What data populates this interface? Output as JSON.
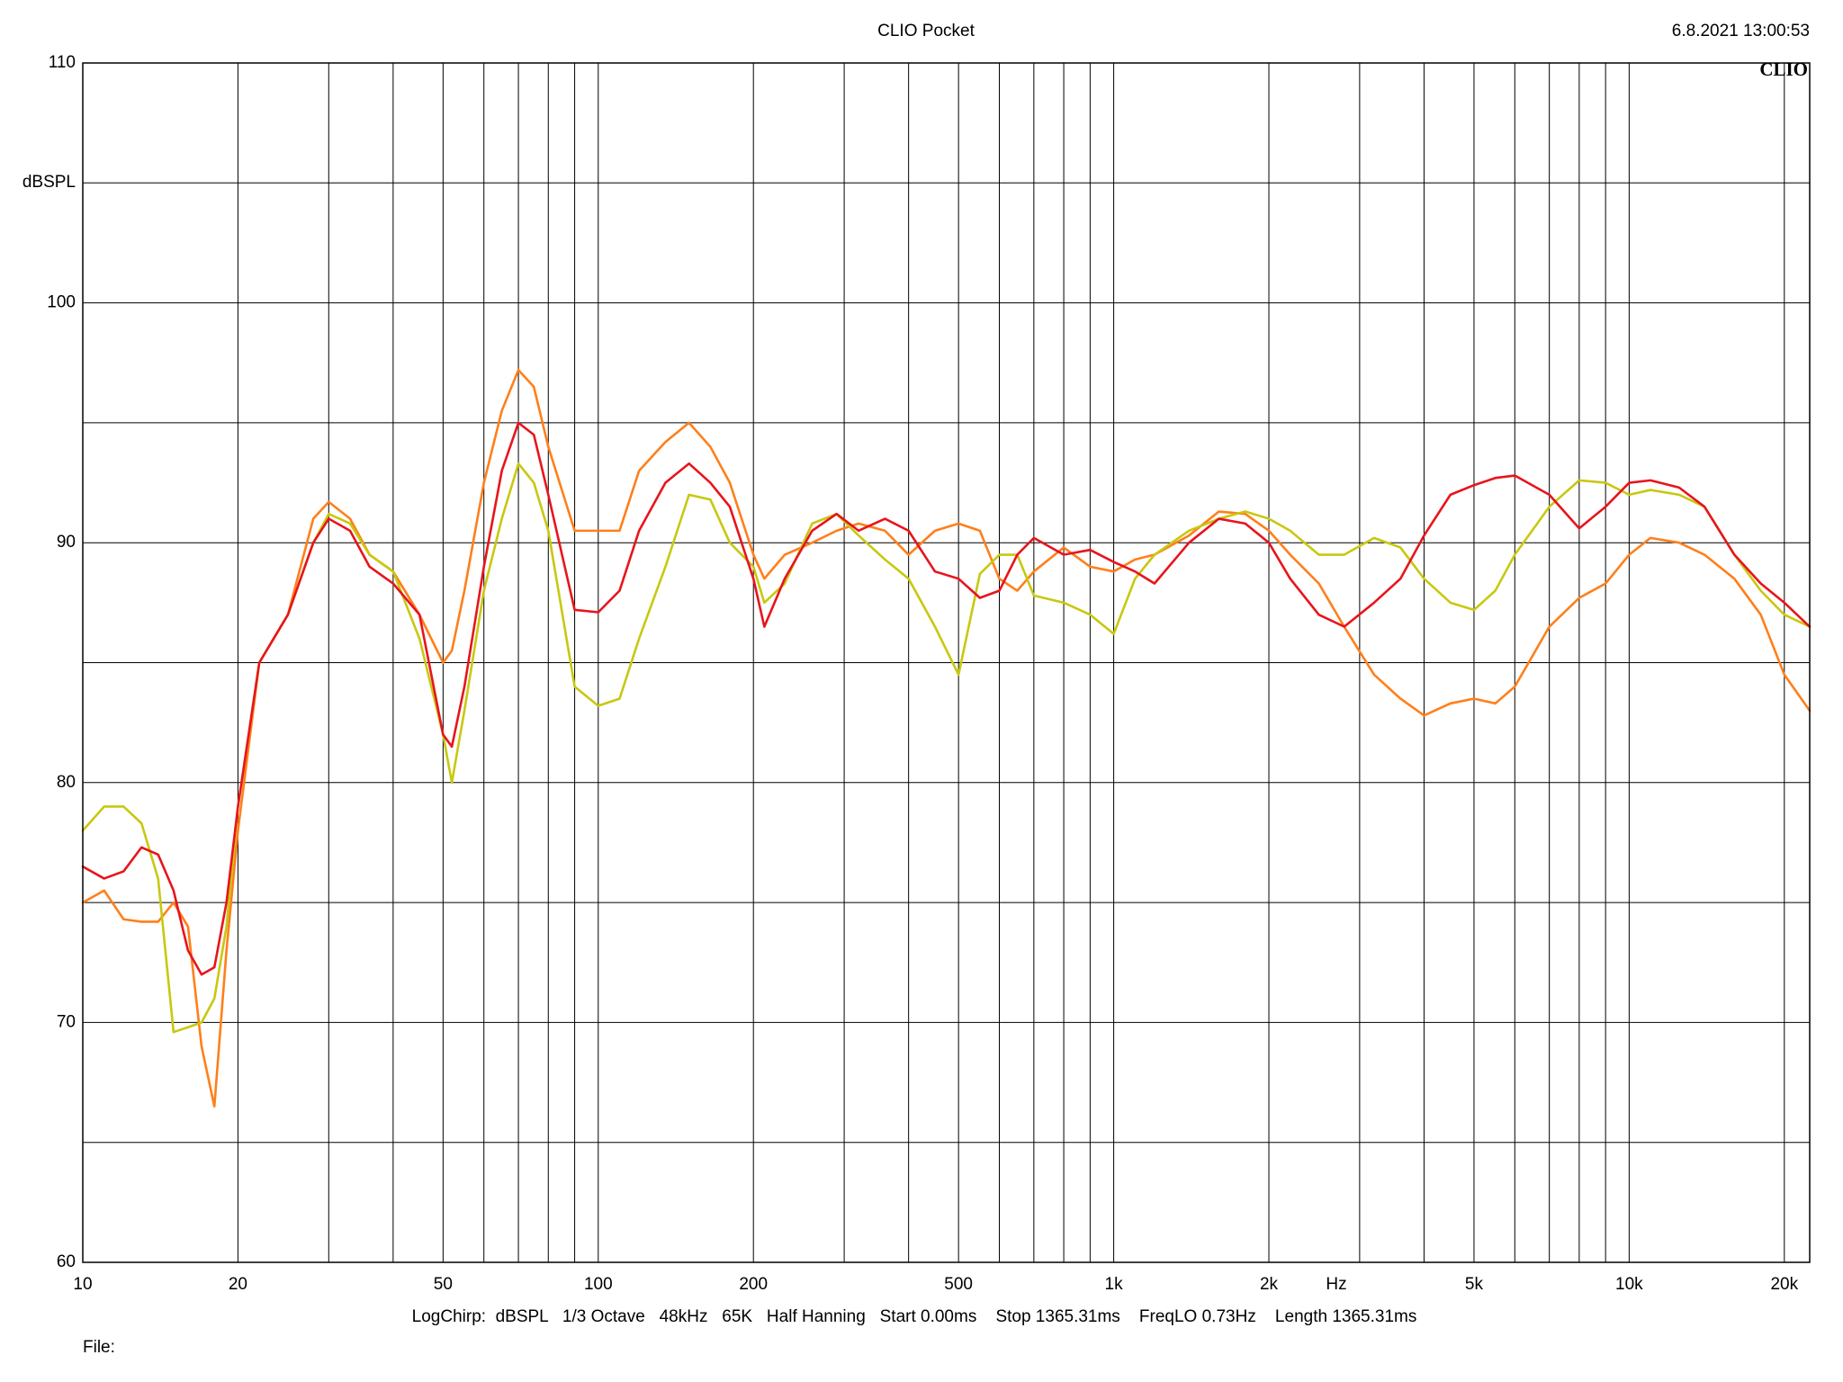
{
  "chart_data": {
    "type": "line",
    "title": "CLIO Pocket",
    "timestamp": "6.8.2021 13:00:53",
    "logo": "CLIO",
    "y_label": "dBSPL",
    "x_label": "Hz",
    "footer": "LogChirp:  dBSPL   1/3 Octave   48kHz   65K   Half Hanning   Start 0.00ms    Stop 1365.31ms    FreqLO 0.73Hz    Length 1365.31ms",
    "file_label": "File:",
    "xscale": "log",
    "xlim": [
      10,
      22400
    ],
    "ylim": [
      60,
      110
    ],
    "xticks": [
      10,
      20,
      50,
      100,
      200,
      500,
      {
        "value": 1000,
        "label": "1k"
      },
      {
        "value": 2000,
        "label": "2k"
      },
      {
        "value": 5000,
        "label": "5k"
      },
      {
        "value": 10000,
        "label": "10k"
      },
      {
        "value": 20000,
        "label": "20k"
      }
    ],
    "xminor": [
      30,
      40,
      60,
      70,
      80,
      90,
      300,
      400,
      600,
      700,
      800,
      900,
      3000,
      4000,
      6000,
      7000,
      8000,
      9000
    ],
    "yticks": [
      60,
      70,
      80,
      90,
      100,
      110
    ],
    "yminor": [
      65,
      75,
      85,
      95,
      105
    ],
    "grid": true,
    "x": [
      10,
      11,
      12,
      13,
      14,
      15,
      16,
      17,
      18,
      19,
      20,
      22,
      25,
      28,
      30,
      33,
      36,
      40,
      45,
      50,
      52,
      55,
      60,
      65,
      70,
      75,
      80,
      90,
      100,
      110,
      120,
      135,
      150,
      165,
      180,
      200,
      210,
      230,
      260,
      290,
      320,
      360,
      400,
      450,
      500,
      550,
      600,
      650,
      700,
      800,
      900,
      1000,
      1100,
      1200,
      1400,
      1600,
      1800,
      2000,
      2200,
      2500,
      2800,
      3200,
      3600,
      4000,
      4500,
      5000,
      5500,
      6000,
      7000,
      8000,
      9000,
      10000,
      11000,
      12500,
      14000,
      16000,
      18000,
      20000,
      22400
    ],
    "series": [
      {
        "color": "#ff7f1a",
        "values": [
          75,
          75.5,
          74.3,
          74.2,
          74.2,
          75,
          74,
          69,
          66.5,
          73,
          78,
          85,
          87,
          91,
          91.7,
          91,
          89.5,
          88.8,
          87,
          85,
          85.5,
          88,
          92.5,
          95.5,
          97.2,
          96.5,
          94,
          90.5,
          90.5,
          90.5,
          93,
          94.2,
          95,
          94,
          92.5,
          89.5,
          88.5,
          89.5,
          90,
          90.5,
          90.8,
          90.5,
          89.5,
          90.5,
          90.8,
          90.5,
          88.5,
          88,
          88.8,
          89.8,
          89,
          88.8,
          89.3,
          89.5,
          90.3,
          91.3,
          91.2,
          90.5,
          89.5,
          88.3,
          86.5,
          84.5,
          83.5,
          82.8,
          83.3,
          83.5,
          83.3,
          84,
          86.5,
          87.7,
          88.3,
          89.5,
          90.2,
          90,
          89.5,
          88.5,
          87,
          84.5,
          83
        ]
      },
      {
        "color": "#c8c810",
        "values": [
          78,
          79,
          79,
          78.3,
          76,
          69.6,
          69.8,
          70,
          71,
          74,
          79,
          85,
          87,
          90,
          91.2,
          90.8,
          89.5,
          88.8,
          86,
          82,
          80,
          83,
          88,
          91,
          93.3,
          92.5,
          90.5,
          84,
          83.2,
          83.5,
          86,
          89,
          92,
          91.8,
          90,
          89,
          87.5,
          88.3,
          90.8,
          91.2,
          90.3,
          89.3,
          88.5,
          86.5,
          84.5,
          88.7,
          89.5,
          89.5,
          87.8,
          87.5,
          87,
          86.2,
          88.5,
          89.5,
          90.5,
          91,
          91.3,
          91,
          90.5,
          89.5,
          89.5,
          90.2,
          89.8,
          88.5,
          87.5,
          87.2,
          88,
          89.5,
          91.5,
          92.6,
          92.5,
          92,
          92.2,
          92,
          91.5,
          89.5,
          88,
          87,
          86.5
        ]
      },
      {
        "color": "#e8141c",
        "values": [
          76.5,
          76,
          76.3,
          77.3,
          77,
          75.5,
          73,
          72,
          72.3,
          75,
          79,
          85,
          87,
          90,
          91,
          90.5,
          89,
          88.3,
          87,
          82,
          81.5,
          84,
          89,
          93,
          95,
          94.5,
          92,
          87.2,
          87.1,
          88,
          90.5,
          92.5,
          93.3,
          92.5,
          91.5,
          88.5,
          86.5,
          88.5,
          90.5,
          91.2,
          90.5,
          91,
          90.5,
          88.8,
          88.5,
          87.7,
          88,
          89.5,
          90.2,
          89.5,
          89.7,
          89.2,
          88.8,
          88.3,
          90,
          91,
          90.8,
          90,
          88.5,
          87,
          86.5,
          87.5,
          88.5,
          90.3,
          92,
          92.4,
          92.7,
          92.8,
          92,
          90.6,
          91.5,
          92.5,
          92.6,
          92.3,
          91.5,
          89.5,
          88.3,
          87.5,
          86.5
        ]
      }
    ]
  }
}
